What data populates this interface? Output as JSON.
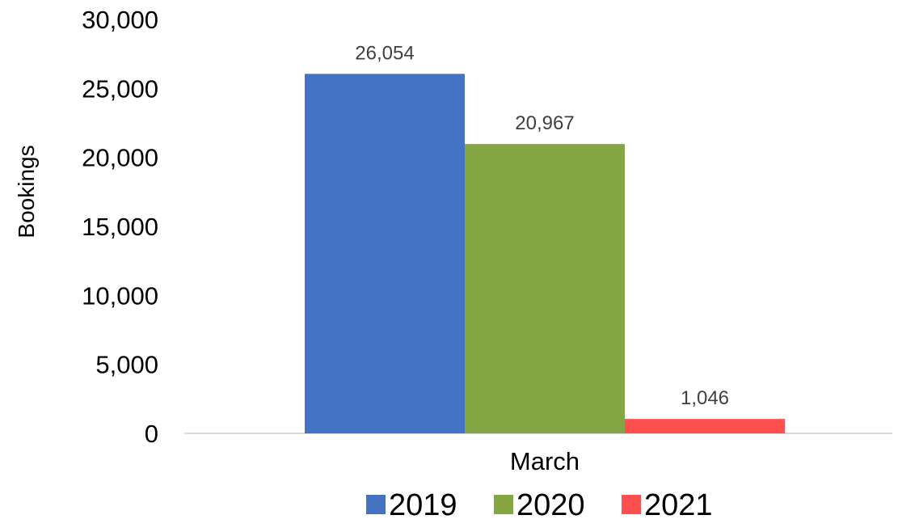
{
  "chart_data": {
    "type": "bar",
    "categories": [
      "March"
    ],
    "series": [
      {
        "name": "2019",
        "values": [
          26054
        ],
        "label": "26,054",
        "color": "#4472C4"
      },
      {
        "name": "2020",
        "values": [
          20967
        ],
        "label": "20,967",
        "color": "#84A645"
      },
      {
        "name": "2021",
        "values": [
          1046
        ],
        "label": "1,046",
        "color": "#FF5050"
      }
    ],
    "ylabel": "Bookings",
    "ylim": [
      0,
      30000
    ],
    "yticks": [
      0,
      5000,
      10000,
      15000,
      20000,
      25000,
      30000
    ],
    "ytick_labels": [
      "0",
      "5,000",
      "10,000",
      "15,000",
      "20,000",
      "25,000",
      "30,000"
    ],
    "grid": false,
    "legend_position": "bottom"
  }
}
